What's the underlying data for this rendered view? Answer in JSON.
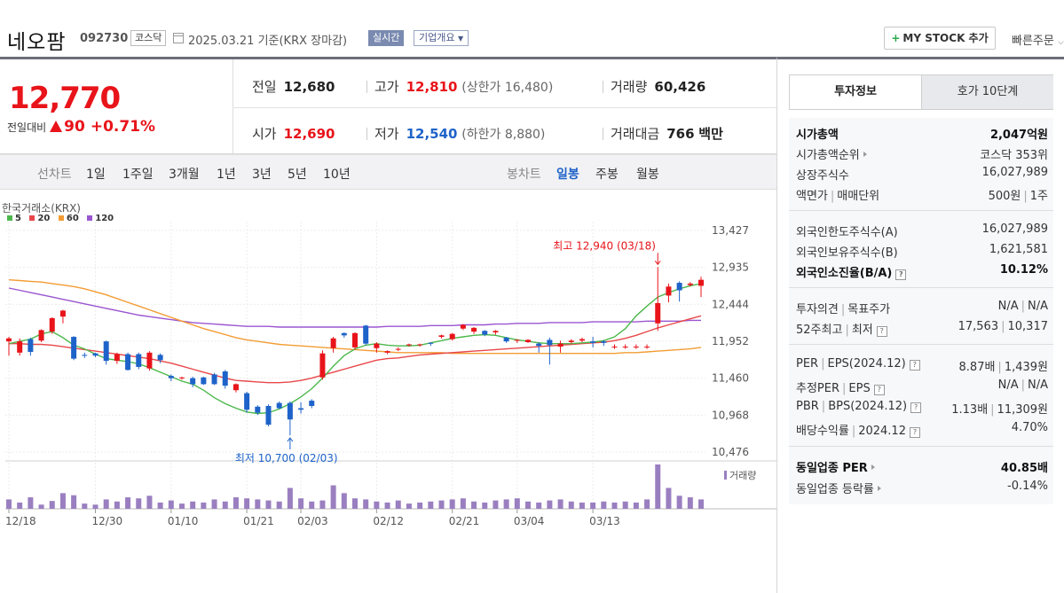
{
  "header": {
    "stock_name": "네오팜",
    "stock_code": "092730",
    "market": "코스닥",
    "base_date": "2025.03.21  기준(KRX 장마감)",
    "realtime": "실시간",
    "company_overview": "기업개요",
    "my_stock": "MY STOCK 추가",
    "quick_order": "빠른주문"
  },
  "price": {
    "current": "12,770",
    "change_label": "전일대비",
    "change_amount": "90",
    "change_rate": "+0.71%",
    "prev_close_label": "전일",
    "prev_close": "12,680",
    "high_label": "고가",
    "high": "12,810",
    "upper_limit_text": "(상한가 16,480)",
    "volume_label": "거래량",
    "volume": "60,426",
    "open_label": "시가",
    "open": "12,690",
    "low_label": "저가",
    "low": "12,540",
    "lower_limit_text": "(하한가 8,880)",
    "amount_label": "거래대금",
    "amount": "766",
    "amount_unit": "백만"
  },
  "period_bar": {
    "line_chart": "선차트",
    "periods": [
      "1일",
      "1주일",
      "3개월",
      "1년",
      "3년",
      "5년",
      "10년"
    ],
    "candle_chart": "봉차트",
    "candle_periods": [
      "일봉",
      "주봉",
      "월봉"
    ],
    "active_candle": "일봉"
  },
  "chart_meta": {
    "exchange": "한국거래소(KRX)",
    "ma": [
      {
        "name": "5",
        "color": "#4cb84c"
      },
      {
        "name": "20",
        "color": "#e8474a"
      },
      {
        "name": "60",
        "color": "#f39c34"
      },
      {
        "name": "120",
        "color": "#9a55d0"
      }
    ],
    "high_annotation": "최고 12,940 (03/18)",
    "low_annotation": "최저 10,700 (02/03)",
    "volume_label": "거래량"
  },
  "chart_data": {
    "type": "candlestick",
    "y_ticks": [
      "13,427",
      "12,935",
      "12,444",
      "11,952",
      "11,460",
      "10,968",
      "10,476"
    ],
    "ylim": [
      10476,
      13427
    ],
    "x_ticks": [
      "12/18",
      "12/30",
      "01/10",
      "01/21",
      "02/03",
      "02/12",
      "02/21",
      "03/04",
      "03/13"
    ],
    "x_tick_index": [
      0,
      8,
      15,
      22,
      27,
      34,
      41,
      47,
      54
    ],
    "candles": [
      [
        11950,
        11990,
        11760,
        12010
      ],
      [
        11800,
        11950,
        11760,
        11990
      ],
      [
        11980,
        11810,
        11760,
        12000
      ],
      [
        11960,
        12100,
        11940,
        12110
      ],
      [
        12080,
        12260,
        12050,
        12270
      ],
      [
        12280,
        12360,
        12190,
        12370
      ],
      [
        12010,
        11720,
        11700,
        12020
      ],
      [
        11770,
        11760,
        11730,
        11800
      ],
      [
        11790,
        11760,
        11740,
        11800
      ],
      [
        11950,
        11690,
        11640,
        11960
      ],
      [
        11690,
        11780,
        11650,
        11800
      ],
      [
        11780,
        11570,
        11560,
        11800
      ],
      [
        11780,
        11610,
        11580,
        11800
      ],
      [
        11590,
        11800,
        11560,
        11820
      ],
      [
        11770,
        11700,
        11660,
        11790
      ],
      [
        11490,
        11460,
        11420,
        11510
      ],
      [
        11460,
        11470,
        11440,
        11480
      ],
      [
        11460,
        11380,
        11340,
        11480
      ],
      [
        11470,
        11380,
        11370,
        11480
      ],
      [
        11510,
        11380,
        11370,
        11530
      ],
      [
        11550,
        11360,
        11320,
        11570
      ],
      [
        11300,
        11380,
        11270,
        11390
      ],
      [
        11260,
        11040,
        11000,
        11280
      ],
      [
        11080,
        11000,
        10970,
        11100
      ],
      [
        11090,
        10840,
        10820,
        11110
      ],
      [
        11130,
        11060,
        11050,
        11150
      ],
      [
        11130,
        10910,
        10700,
        11150
      ],
      [
        11060,
        11040,
        10990,
        11140
      ],
      [
        11160,
        11090,
        11060,
        11180
      ],
      [
        11470,
        11790,
        11440,
        11830
      ],
      [
        11860,
        11990,
        11800,
        12010
      ],
      [
        12060,
        12030,
        12000,
        12070
      ],
      [
        11870,
        12060,
        11840,
        12070
      ],
      [
        12160,
        11920,
        11900,
        12170
      ],
      [
        11860,
        11920,
        11800,
        11940
      ],
      [
        11800,
        11820,
        11780,
        11830
      ],
      [
        11840,
        11850,
        11820,
        11870
      ],
      [
        11900,
        11910,
        11880,
        11920
      ],
      [
        11900,
        11910,
        11880,
        11920
      ],
      [
        11930,
        11920,
        11890,
        11940
      ],
      [
        12010,
        12030,
        11990,
        12040
      ],
      [
        11980,
        12050,
        11960,
        12060
      ],
      [
        12120,
        12170,
        12100,
        12180
      ],
      [
        12080,
        12130,
        12050,
        12140
      ],
      [
        12090,
        12040,
        12020,
        12100
      ],
      [
        12070,
        12090,
        12040,
        12100
      ],
      [
        12000,
        11950,
        11930,
        12010
      ],
      [
        11960,
        11970,
        11930,
        11980
      ],
      [
        11940,
        11970,
        11930,
        11980
      ],
      [
        11920,
        11890,
        11800,
        11940
      ],
      [
        11970,
        11900,
        11640,
        12000
      ],
      [
        11880,
        11920,
        11800,
        11960
      ],
      [
        11940,
        11960,
        11920,
        11980
      ],
      [
        11960,
        11980,
        11940,
        12000
      ],
      [
        11950,
        11930,
        11870,
        12010
      ],
      [
        11950,
        11930,
        11890,
        11970
      ],
      [
        11880,
        11880,
        11850,
        11910
      ],
      [
        11880,
        11880,
        11850,
        11910
      ],
      [
        11880,
        11880,
        11850,
        11910
      ],
      [
        11880,
        11880,
        11850,
        11910
      ],
      [
        12190,
        12460,
        12090,
        12940
      ],
      [
        12560,
        12680,
        12470,
        12720
      ],
      [
        12730,
        12630,
        12480,
        12750
      ],
      [
        12700,
        12720,
        12680,
        12740
      ],
      [
        12690,
        12770,
        12540,
        12810
      ]
    ],
    "ma5": [
      11920,
      11950,
      11980,
      12050,
      12080,
      12000,
      11900,
      11850,
      11780,
      11720,
      11700,
      11680,
      11650,
      11600,
      11540,
      11480,
      11420,
      11380,
      11300,
      11200,
      11120,
      11060,
      11010,
      10990,
      11000,
      11050,
      11120,
      11210,
      11320,
      11460,
      11620,
      11760,
      11850,
      11900,
      11920,
      11900,
      11890,
      11890,
      11900,
      11930,
      11960,
      11990,
      12010,
      12030,
      12040,
      12030,
      12000,
      11970,
      11950,
      11930,
      11920,
      11920,
      11920,
      11930,
      11940,
      11960,
      12010,
      12120,
      12290,
      12420,
      12540,
      12600,
      12650,
      12690,
      12720
    ],
    "ma20": [
      11920,
      11920,
      11910,
      11910,
      11900,
      11880,
      11860,
      11840,
      11820,
      11800,
      11780,
      11760,
      11740,
      11720,
      11690,
      11660,
      11620,
      11580,
      11540,
      11500,
      11460,
      11430,
      11420,
      11410,
      11400,
      11400,
      11410,
      11430,
      11460,
      11500,
      11540,
      11580,
      11620,
      11660,
      11700,
      11720,
      11730,
      11750,
      11770,
      11780,
      11790,
      11800,
      11810,
      11820,
      11830,
      11840,
      11850,
      11860,
      11870,
      11880,
      11890,
      11900,
      11910,
      11920,
      11930,
      11940,
      11960,
      11990,
      12030,
      12080,
      12130,
      12170,
      12210,
      12250,
      12290
    ],
    "ma60": [
      12770,
      12760,
      12750,
      12740,
      12720,
      12700,
      12680,
      12650,
      12610,
      12570,
      12520,
      12470,
      12420,
      12370,
      12320,
      12270,
      12220,
      12170,
      12120,
      12080,
      12040,
      12000,
      11970,
      11950,
      11930,
      11910,
      11900,
      11890,
      11880,
      11870,
      11860,
      11850,
      11840,
      11830,
      11820,
      11810,
      11800,
      11800,
      11800,
      11800,
      11800,
      11790,
      11790,
      11790,
      11790,
      11790,
      11790,
      11790,
      11790,
      11790,
      11790,
      11790,
      11790,
      11790,
      11790,
      11790,
      11790,
      11800,
      11800,
      11810,
      11820,
      11830,
      11840,
      11850,
      11870
    ],
    "ma120": [
      12660,
      12630,
      12600,
      12570,
      12540,
      12510,
      12480,
      12450,
      12420,
      12390,
      12360,
      12330,
      12300,
      12280,
      12260,
      12240,
      12220,
      12200,
      12190,
      12180,
      12170,
      12160,
      12150,
      12150,
      12150,
      12140,
      12140,
      12140,
      12140,
      12140,
      12140,
      12140,
      12140,
      12140,
      12140,
      12150,
      12150,
      12150,
      12150,
      12160,
      12160,
      12160,
      12170,
      12170,
      12170,
      12180,
      12180,
      12190,
      12190,
      12190,
      12200,
      12200,
      12200,
      12200,
      12210,
      12210,
      12210,
      12210,
      12210,
      12220,
      12220,
      12220,
      12220,
      12230,
      12230
    ],
    "volume": [
      18,
      12,
      22,
      8,
      15,
      30,
      26,
      10,
      8,
      18,
      14,
      22,
      20,
      25,
      12,
      16,
      10,
      14,
      12,
      18,
      14,
      22,
      20,
      18,
      16,
      14,
      40,
      20,
      14,
      16,
      45,
      30,
      20,
      18,
      14,
      12,
      16,
      10,
      12,
      14,
      16,
      18,
      20,
      14,
      12,
      16,
      18,
      20,
      14,
      12,
      16,
      18,
      14,
      12,
      12,
      14,
      12,
      14,
      12,
      18,
      85,
      40,
      25,
      22,
      18
    ]
  },
  "right_panel": {
    "tab_invest": "투자정보",
    "tab_orderbook": "호가 10단계",
    "rows1": [
      {
        "k": "시가총액",
        "v": "2,047억원"
      },
      {
        "k": "시가총액순위",
        "v": "코스닥 353위"
      },
      {
        "k": "상장주식수",
        "v": "16,027,989"
      },
      {
        "k": "액면가",
        "k2": "매매단위",
        "v": "500원",
        "v2": "1주"
      }
    ],
    "rows2": [
      {
        "k": "외국인한도주식수(A)",
        "v": "16,027,989"
      },
      {
        "k": "외국인보유주식수(B)",
        "v": "1,621,581"
      },
      {
        "k": "외국인소진율(B/A)",
        "v": "10.12%"
      }
    ],
    "rows3": [
      {
        "k": "투자의견",
        "k2": "목표주가",
        "v": "N/A",
        "v2": "N/A"
      },
      {
        "k": "52주최고",
        "k2": "최저",
        "v": "17,563",
        "v2": "10,317"
      }
    ],
    "rows4": [
      {
        "k": "PER",
        "k2": "EPS(2024.12)",
        "v": "8.87배",
        "v2": "1,439원"
      },
      {
        "k": "추정PER",
        "k2": "EPS",
        "v": "N/A",
        "v2": "N/A"
      },
      {
        "k": "PBR",
        "k2": "BPS(2024.12)",
        "v": "1.13배",
        "v2": "11,309원"
      },
      {
        "k": "배당수익률",
        "k2": "2024.12",
        "v": "4.70%"
      }
    ],
    "rows5": [
      {
        "k": "동일업종 PER",
        "v": "40.85배"
      },
      {
        "k": "동일업종 등락률",
        "v": "-0.14%"
      }
    ]
  }
}
